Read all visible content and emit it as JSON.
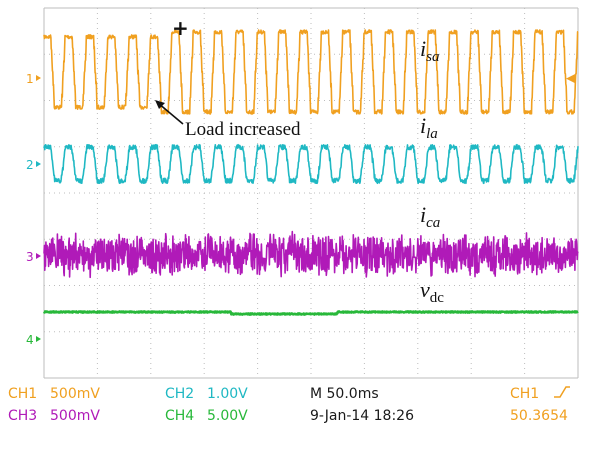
{
  "chart_data": {
    "type": "line",
    "title": "",
    "xlabel": "",
    "ylabel": "",
    "grid": true,
    "grid_divisions": {
      "x": 10,
      "y": 8
    },
    "colors": {
      "background": "#ffffff",
      "grid": "#bdbdbd",
      "ch1": "#f0a020",
      "ch2": "#1fb8c3",
      "ch3": "#b01ab8",
      "ch4": "#28b83a",
      "text_dark": "#1a1a1a"
    },
    "series": [
      {
        "name": "i_sa",
        "channel": "CH1",
        "marker": "1",
        "scale": "500mV",
        "waveform": "square-stepped",
        "cycles": 25,
        "load_step_at_fraction": 0.22
      },
      {
        "name": "i_la",
        "channel": "CH2",
        "marker": "2",
        "scale": "1.00V",
        "waveform": "stepped-sine",
        "cycles": 25
      },
      {
        "name": "i_ca",
        "channel": "CH3",
        "marker": "3",
        "scale": "500mV",
        "waveform": "noisy"
      },
      {
        "name": "v_dc",
        "channel": "CH4",
        "marker": "4",
        "scale": "5.00V",
        "waveform": "flat-dc"
      }
    ],
    "trace_labels": [
      {
        "series": "i_sa",
        "base": "i",
        "sub": "sa"
      },
      {
        "series": "i_la",
        "base": "i",
        "sub": "la"
      },
      {
        "series": "i_ca",
        "base": "i",
        "sub": "ca"
      },
      {
        "series": "v_dc",
        "base": "v",
        "sub": "dc"
      }
    ],
    "annotation": {
      "text": "Load increased"
    },
    "trigger_marker": "+",
    "status_bar": {
      "row1": [
        {
          "label": "CH1",
          "value": "500mV",
          "color": "#f0a020"
        },
        {
          "label": "CH2",
          "value": "1.00V",
          "color": "#1fb8c3"
        },
        {
          "label": "",
          "value": "M 50.0ms",
          "color": "#1a1a1a"
        },
        {
          "label": "CH1",
          "value": "",
          "color": "#f0a020",
          "icon": "rising-edge-icon"
        }
      ],
      "row2": [
        {
          "label": "CH3",
          "value": "500mV",
          "color": "#b01ab8"
        },
        {
          "label": "CH4",
          "value": "5.00V",
          "color": "#28b83a"
        },
        {
          "label": "",
          "value": "9-Jan-14 18:26",
          "color": "#1a1a1a"
        },
        {
          "label": "",
          "value": "50.3654",
          "color": "#f0a020"
        }
      ]
    }
  }
}
